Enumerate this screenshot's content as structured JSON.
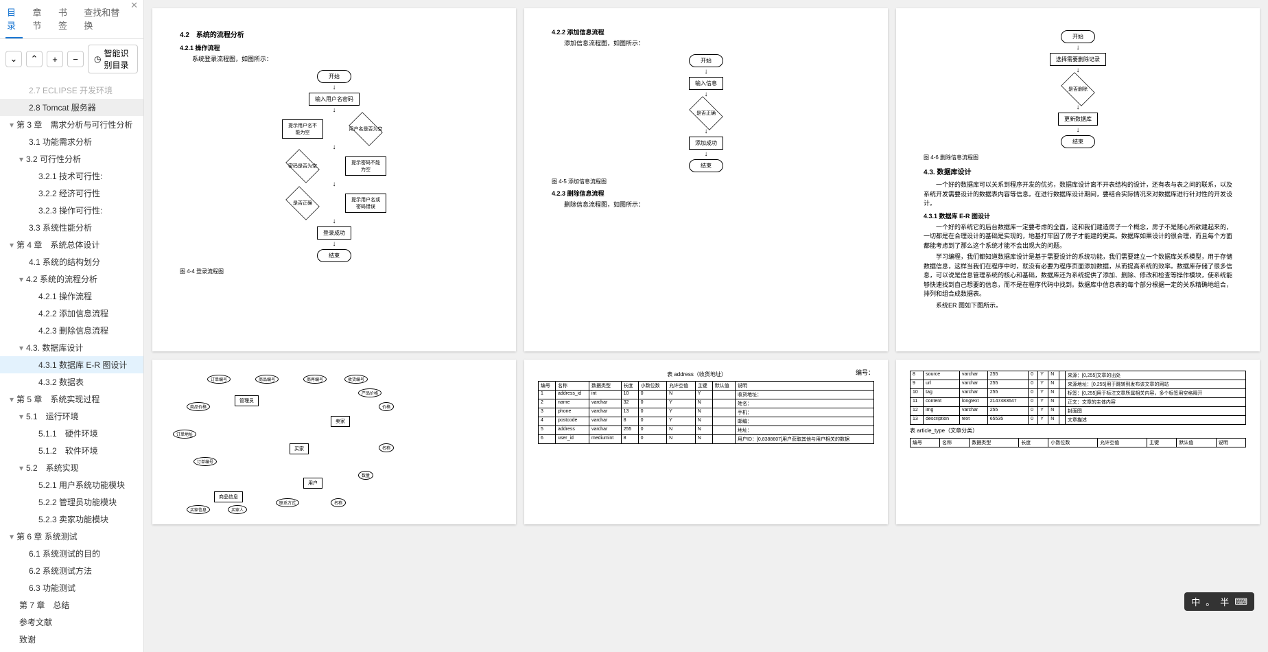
{
  "tabs": {
    "t1": "目录",
    "t2": "章节",
    "t3": "书签",
    "t4": "查找和替换"
  },
  "smartOutline": "智能识别目录",
  "outline": [
    {
      "lvl": 2,
      "text": "2.7 ECLIPSE 开发环境",
      "cut": true
    },
    {
      "lvl": 2,
      "text": "2.8 Tomcat 服务器",
      "hl": true
    },
    {
      "lvl": 1,
      "text": "第 3 章　需求分析与可行性分析",
      "exp": true
    },
    {
      "lvl": 2,
      "text": "3.1 功能需求分析"
    },
    {
      "lvl": 2,
      "text": "3.2 可行性分析",
      "exp": true
    },
    {
      "lvl": 3,
      "text": "3.2.1 技术可行性:"
    },
    {
      "lvl": 3,
      "text": "3.2.2 经济可行性"
    },
    {
      "lvl": 3,
      "text": "3.2.3 操作可行性:"
    },
    {
      "lvl": 2,
      "text": "3.3 系统性能分析"
    },
    {
      "lvl": 1,
      "text": "第 4 章　系统总体设计",
      "exp": true
    },
    {
      "lvl": 2,
      "text": "4.1 系统的结构划分"
    },
    {
      "lvl": 2,
      "text": "4.2 系统的流程分析",
      "exp": true
    },
    {
      "lvl": 3,
      "text": "4.2.1 操作流程"
    },
    {
      "lvl": 3,
      "text": "4.2.2 添加信息流程"
    },
    {
      "lvl": 3,
      "text": "4.2.3 删除信息流程"
    },
    {
      "lvl": 2,
      "text": "4.3. 数据库设计",
      "exp": true
    },
    {
      "lvl": 3,
      "text": "4.3.1 数据库 E-R 图设计",
      "sel": true
    },
    {
      "lvl": 3,
      "text": "4.3.2 数据表"
    },
    {
      "lvl": 1,
      "text": "第 5 章　系统实现过程",
      "exp": true
    },
    {
      "lvl": 2,
      "text": "5.1　运行环境",
      "exp": true
    },
    {
      "lvl": 3,
      "text": "5.1.1　硬件环境"
    },
    {
      "lvl": 3,
      "text": "5.1.2　软件环境"
    },
    {
      "lvl": 2,
      "text": "5.2　系统实现",
      "exp": true
    },
    {
      "lvl": 3,
      "text": "5.2.1 用户系统功能模块"
    },
    {
      "lvl": 3,
      "text": "5.2.2 管理员功能模块"
    },
    {
      "lvl": 3,
      "text": "5.2.3 卖家功能模块"
    },
    {
      "lvl": 1,
      "text": "第 6 章 系统测试",
      "exp": true
    },
    {
      "lvl": 2,
      "text": "6.1 系统测试的目的"
    },
    {
      "lvl": 2,
      "text": "6.2 系统测试方法"
    },
    {
      "lvl": 2,
      "text": "6.3 功能测试"
    },
    {
      "lvl": 1,
      "text": "第 7 章　总结"
    },
    {
      "lvl": 1,
      "text": "参考文献"
    },
    {
      "lvl": 1,
      "text": "致谢"
    }
  ],
  "page1": {
    "h1": "4.2　系统的流程分析",
    "h2": "4.2.1 操作流程",
    "p1": "系统登录流程图，如图所示：",
    "flow": {
      "start": "开始",
      "input": "输入用户名密码",
      "d1": "用户名是否为空",
      "r1": "提示用户名不能为空",
      "d2": "密码是否为空",
      "r2": "提示密码不能为空",
      "d3": "是否正确",
      "r3": "提示用户名或密码错误",
      "ok": "登录成功",
      "end": "结束"
    },
    "cap": "图 4-4 登录流程图"
  },
  "page2": {
    "h1": "4.2.2 添加信息流程",
    "p1": "添加信息流程图，如图所示：",
    "flow": {
      "start": "开始",
      "input": "输入信息",
      "d1": "是否正确",
      "ok": "添加成功",
      "end": "结束"
    },
    "cap1": "图 4-5 添加信息流程图",
    "h2": "4.2.3 删除信息流程",
    "p2": "删除信息流程图，如图所示："
  },
  "page3": {
    "flow": {
      "start": "开始",
      "sel": "选择需要删除记录",
      "d1": "是否删除",
      "upd": "更新数据库",
      "end": "结束"
    },
    "cap": "图 4-6 删除信息流程图",
    "h1": "4.3. 数据库设计",
    "p1": "一个好的数据库可以关系到程序开发的优劣，数据库设计离不开表结构的设计，还有表与表之间的联系，以及系统开发需要设计的数据表内容等信息。在进行数据库设计期间，要结合实际情况来对数据库进行针对性的开发设计。",
    "h2": "4.3.1 数据库 E-R 图设计",
    "p2": "一个好的系统它的后台数据库一定要考虑的全面，这和我们建造房子一个概念，房子不是随心所欲建起来的，一切都是在合理设计的基础是实现的，地基打牢固了房子才能建的更高。数据库如果设计的很合理，而且每个方面都能考虑到了那么这个系统才能不会出现大的问题。",
    "p3": "学习编程，我们都知道数据库设计是基于需要设计的系统功能，我们需要建立一个数据库关系模型，用于存储数据信息，这样当我们在程序中时，就没有必要为程序页面添加数据，从而提高系统的效率。数据库存储了很多信息，可以说是信息管理系统的核心和基础，数据库还为系统提供了添加、删除、修改和检查等操作模块，使系统能够快速找到自己想要的信息，而不是在程序代码中找到。数据库中信息表的每个部分根据一定的关系精确地组合，排列和组合成数据表。",
    "p4": "系统ER 图如下图所示。"
  },
  "page4_er": {
    "entities": [
      "管理员",
      "卖家",
      "买家",
      "用户",
      "商品信息"
    ],
    "attrs": [
      "订单编号",
      "商品编号",
      "商再编号",
      "收货编号",
      "商品价格",
      "订单地址",
      "订单编号",
      "价格",
      "名称",
      "数量",
      "名称",
      "联系方式",
      "买家人",
      "买家信息",
      "产品价格"
    ]
  },
  "page5": {
    "tableTitle": "表 address（收货地址）",
    "tableNum": "编号：",
    "cols": [
      "编号",
      "名称",
      "数据类型",
      "长度",
      "小数位数",
      "允许空值",
      "主键",
      "默认值",
      "说明"
    ],
    "rows": [
      [
        "1",
        "address_id",
        "int",
        "10",
        "0",
        "N",
        "Y",
        "",
        "收货地址："
      ],
      [
        "2",
        "name",
        "varchar",
        "32",
        "0",
        "Y",
        "N",
        "",
        "姓名："
      ],
      [
        "3",
        "phone",
        "varchar",
        "13",
        "0",
        "Y",
        "N",
        "",
        "手机："
      ],
      [
        "4",
        "postcode",
        "varchar",
        "8",
        "0",
        "Y",
        "N",
        "",
        "邮编："
      ],
      [
        "5",
        "address",
        "varchar",
        "255",
        "0",
        "N",
        "N",
        "",
        "地址："
      ],
      [
        "6",
        "user_id",
        "mediumint",
        "8",
        "0",
        "N",
        "N",
        "",
        "用户ID：[0,8388607]用户获取其他与用户相关的数据"
      ]
    ]
  },
  "page6": {
    "rows": [
      [
        "8",
        "source",
        "varchar",
        "255",
        "0",
        "Y",
        "N",
        "",
        "来源：[0,255]文章的出处"
      ],
      [
        "9",
        "url",
        "varchar",
        "255",
        "0",
        "Y",
        "N",
        "",
        "来源地址：[0,255]用于跳转到发布该文章的网站"
      ],
      [
        "10",
        "tag",
        "varchar",
        "255",
        "0",
        "Y",
        "N",
        "",
        "标签：[0,255]用于标注文章所属相关内容，多个标签用空格隔开"
      ],
      [
        "11",
        "content",
        "longtext",
        "2147483647",
        "0",
        "Y",
        "N",
        "",
        "正文：文章的主体内容"
      ],
      [
        "12",
        "img",
        "varchar",
        "255",
        "0",
        "Y",
        "N",
        "",
        "封面图"
      ],
      [
        "13",
        "description",
        "text",
        "65535",
        "0",
        "Y",
        "N",
        "",
        "文章描述"
      ]
    ],
    "tableTitle2": "表 article_type（文章分类）",
    "cols": [
      "编号",
      "名称",
      "数据类型",
      "长度",
      "小数位数",
      "允许空值",
      "主键",
      "默认值",
      "说明"
    ]
  },
  "ime": {
    "lang": "中",
    "punc": "。",
    "width": "半"
  }
}
